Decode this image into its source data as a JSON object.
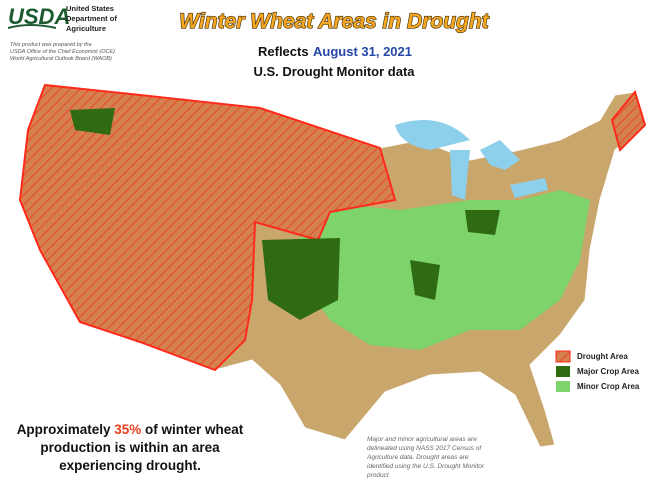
{
  "logo": {
    "mark": "USDA",
    "agency": [
      "United States",
      "Department of",
      "Agriculture"
    ]
  },
  "credit": [
    "This product was prepared by the",
    "USDA Office of the Chief Economist (OCE)",
    "World Agricultural Outlook Board (WAOB)"
  ],
  "title": "Winter Wheat Areas in Drought",
  "subtitle": {
    "prefix": "Reflects",
    "date": "August 31, 2021",
    "source": "U.S. Drought Monitor data"
  },
  "legend": [
    "Drought Area",
    "Major Crop Area",
    "Minor Crop Area"
  ],
  "statement": {
    "line1_start": "Approximately",
    "share": "35%",
    "line1_end": "of winter wheat",
    "line2": "production is within an area",
    "line3": "experiencing drought."
  },
  "note": [
    "Major and minor agricultural areas are",
    "delineated using NASS 2017 Census of",
    "Agriculture data.  Drought areas are",
    "identified using the U.S. Drought Monitor",
    "product"
  ]
}
